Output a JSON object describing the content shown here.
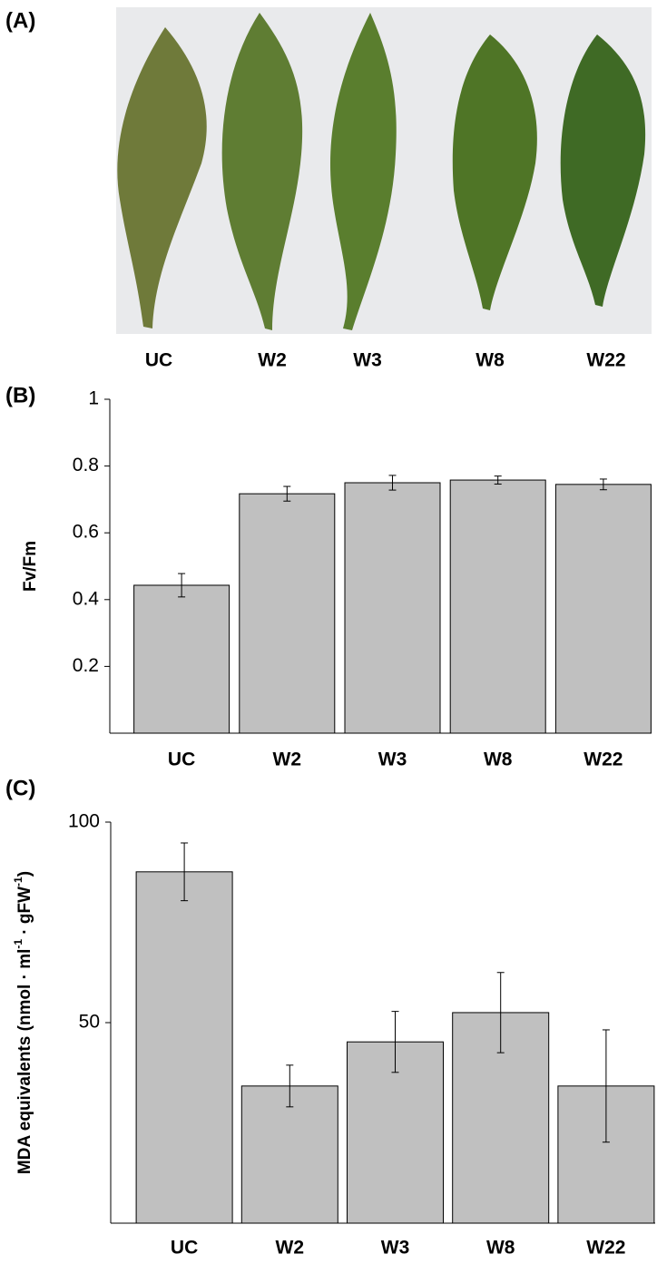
{
  "panel_a": {
    "panel_label": "(A)",
    "leaf_labels": [
      "UC",
      "W2",
      "W3",
      "W8",
      "W22"
    ]
  },
  "chart_data": [
    {
      "type": "bar",
      "panel_label": "(B)",
      "ylabel": [
        "Fv/Fm"
      ],
      "categories": [
        "UC",
        "W2",
        "W3",
        "W8",
        "W22"
      ],
      "values": [
        0.443,
        0.717,
        0.75,
        0.758,
        0.745
      ],
      "errors": [
        0.035,
        0.022,
        0.022,
        0.012,
        0.016
      ],
      "color": "#c0c0c0",
      "ylim": [
        0,
        1
      ],
      "yticks": [
        0.2,
        0.4,
        0.6,
        0.8,
        1
      ]
    },
    {
      "type": "bar",
      "panel_label": "(C)",
      "ylabel": [
        "MDA equivalents (nmol · ml",
        "-1",
        " · gFW",
        "-1",
        ")"
      ],
      "categories": [
        "UC",
        "W2",
        "W3",
        "W8",
        "W22"
      ],
      "values": [
        87.6,
        34.2,
        45.2,
        52.5,
        34.2
      ],
      "errors": [
        7.2,
        5.2,
        7.6,
        10,
        14
      ],
      "color": "#c0c0c0",
      "ylim": [
        0,
        100
      ],
      "yticks": [
        50,
        100
      ]
    }
  ]
}
